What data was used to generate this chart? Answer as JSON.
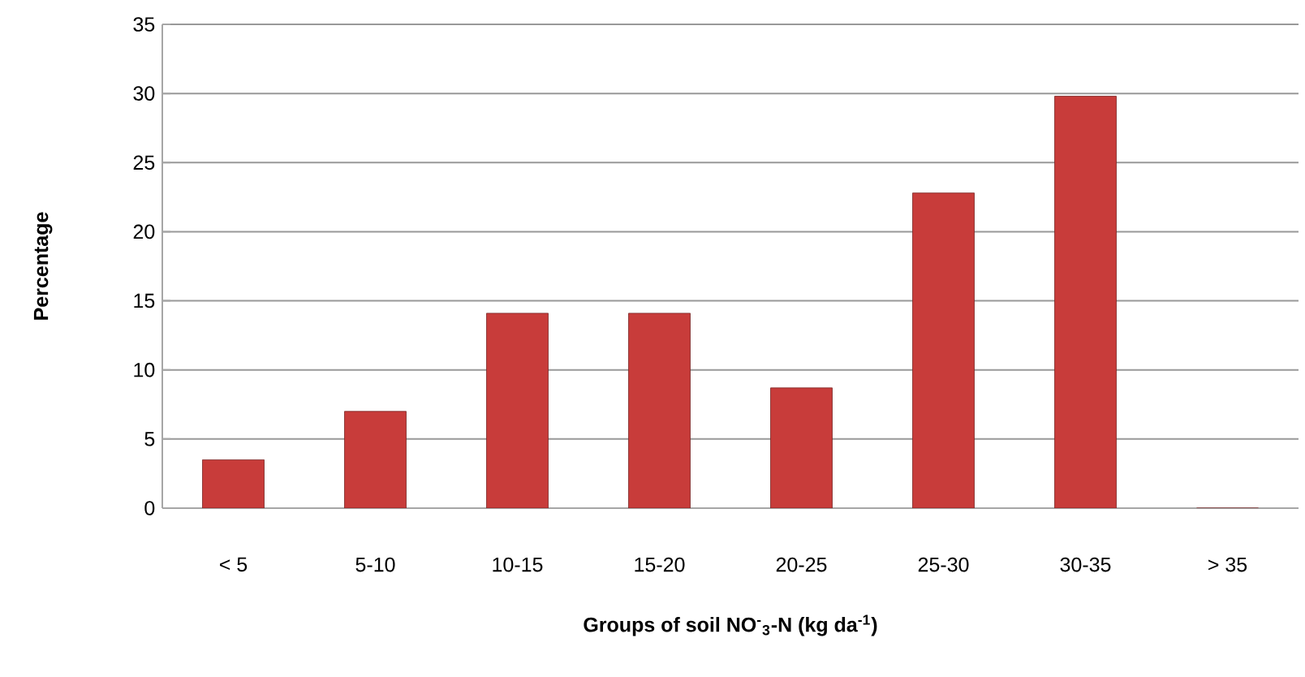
{
  "chart_data": {
    "type": "bar",
    "xlabel": "Groups of soil NO$^{-}$$_{3}$-N (kg da$^{-1}$)",
    "ylabel": "Percentage",
    "categories": [
      "< 5",
      "5-10",
      "10-15",
      "15-20",
      "20-25",
      "25-30",
      "30-35",
      "> 35"
    ],
    "values": [
      3.5,
      7.0,
      14.1,
      14.1,
      8.7,
      22.8,
      29.8,
      0
    ],
    "color": "#c83c3a",
    "ylim": [
      0,
      35
    ],
    "yticks": [
      0,
      5,
      10,
      15,
      20,
      25,
      30,
      35
    ],
    "grid": "y"
  }
}
